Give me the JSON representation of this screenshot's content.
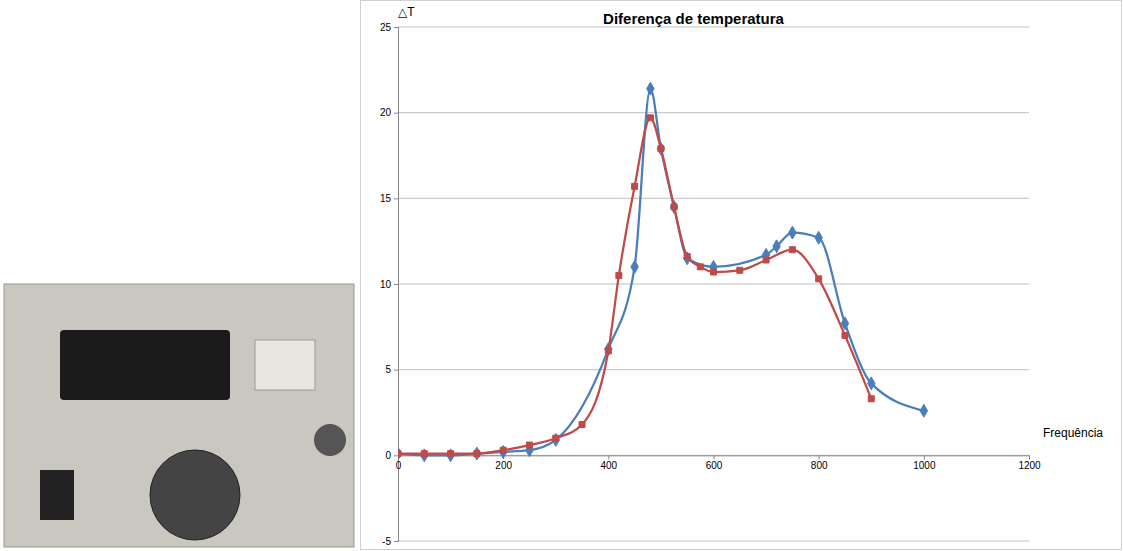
{
  "chart_data": {
    "type": "line",
    "title": "Diferença de temperatura",
    "y_label": "△T",
    "x_label": "Frequência",
    "xlim": [
      0,
      1200
    ],
    "xticks": [
      0,
      200,
      400,
      600,
      800,
      1000,
      1200
    ],
    "ylim": [
      -5,
      25
    ],
    "yticks": [
      -5,
      0,
      5,
      10,
      15,
      20,
      25
    ],
    "grid": true,
    "series": [
      {
        "color": "#4a7ebb",
        "marker": "diamond",
        "line_style": "smooth",
        "x": [
          0,
          50,
          100,
          150,
          200,
          250,
          300,
          400,
          450,
          480,
          500,
          525,
          550,
          600,
          700,
          720,
          750,
          800,
          850,
          900,
          1000
        ],
        "values": [
          0.1,
          0,
          0,
          0.1,
          0.2,
          0.3,
          0.9,
          6.2,
          11,
          21.4,
          17.9,
          14.5,
          11.5,
          11,
          11.7,
          12.2,
          13,
          12.7,
          7.7,
          4.2,
          2.6
        ]
      },
      {
        "color": "#be4b48",
        "marker": "square",
        "line_style": "smooth",
        "x": [
          0,
          50,
          100,
          150,
          200,
          250,
          300,
          350,
          400,
          420,
          450,
          480,
          500,
          525,
          550,
          575,
          600,
          650,
          700,
          750,
          800,
          850,
          900
        ],
        "values": [
          0.1,
          0.1,
          0.1,
          0.1,
          0.3,
          0.6,
          1,
          1.8,
          6.1,
          10.5,
          15.7,
          19.7,
          17.9,
          14.5,
          11.6,
          11,
          10.7,
          10.8,
          11.4,
          12,
          10.3,
          7,
          3.3
        ]
      }
    ]
  }
}
